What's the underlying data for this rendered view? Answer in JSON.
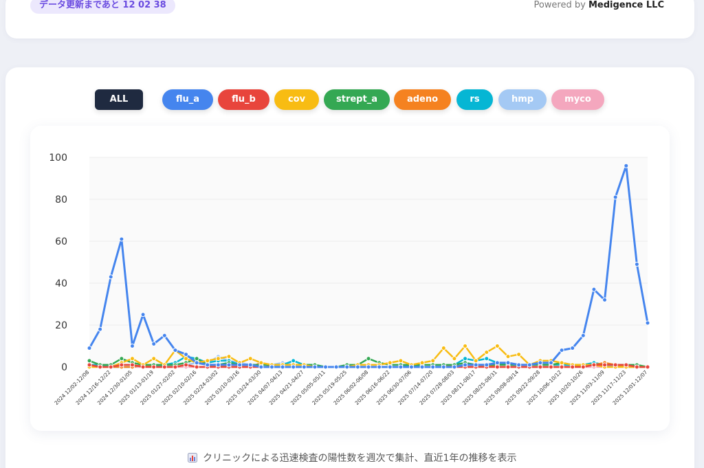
{
  "header": {
    "update_label": "データ更新まであと",
    "countdown": "12 02 38",
    "powered_prefix": "Powered by",
    "powered_company": "Medigence LLC"
  },
  "filters": [
    {
      "label": "ALL",
      "color": "#1f2a40"
    },
    {
      "label": "flu_a",
      "color": "#4585ee"
    },
    {
      "label": "flu_b",
      "color": "#e8453c"
    },
    {
      "label": "cov",
      "color": "#f8bc13"
    },
    {
      "label": "strept_a",
      "color": "#34a853"
    },
    {
      "label": "adeno",
      "color": "#f58220"
    },
    {
      "label": "rs",
      "color": "#06b6d4"
    },
    {
      "label": "hmp",
      "color": "#a4c9f4"
    },
    {
      "label": "myco",
      "color": "#f4a7be"
    }
  ],
  "caption": "クリニックによる迅速検査の陽性数を週次で集計、直近1年の推移を表示",
  "chart_data": {
    "type": "line",
    "title": "",
    "xlabel": "",
    "ylabel": "",
    "ylim": [
      0,
      100
    ],
    "yticks": [
      0,
      20,
      40,
      60,
      80,
      100
    ],
    "grid": true,
    "x": [
      "2024 12/02-12/08",
      "2024 12/09-12/15",
      "2024 12/16-12/22",
      "2024 12/23-12/29",
      "2024 12/30-01/05",
      "2025 01/06-01/12",
      "2025 01/13-01/19",
      "2025 01/20-01/26",
      "2025 01/27-02/02",
      "2025 02/03-02/09",
      "2025 02/10-02/16",
      "2025 02/17-02/23",
      "2025 02/24-03/02",
      "2025 03/03-03/09",
      "2025 03/10-03/16",
      "2025 03/17-03/23",
      "2025 03/24-03/30",
      "2025 03/31-04/06",
      "2025 04/07-04/13",
      "2025 04/14-04/20",
      "2025 04/21-04/27",
      "2025 04/28-05/04",
      "2025 05/05-05/11",
      "2025 05/12-05/18",
      "2025 05/19-05/25",
      "2025 05/26-06/01",
      "2025 06/02-06/08",
      "2025 06/09-06/15",
      "2025 06/16-06/22",
      "2025 06/23-06/29",
      "2025 06/30-07/06",
      "2025 07/07-07/13",
      "2025 07/14-07/20",
      "2025 07/21-07/27",
      "2025 07/28-08/03",
      "2025 08/04-08/10",
      "2025 08/11-08/17",
      "2025 08/18-08/24",
      "2025 08/25-08/31",
      "2025 09/01-09/07",
      "2025 09/08-09/14",
      "2025 09/15-09/21",
      "2025 09/22-09/28",
      "2025 09/29-10/05",
      "2025 10/06-10/12",
      "2025 10/13-10/19",
      "2025 10/20-10/26",
      "2025 10/27-11/02",
      "2025 11/03-11/09",
      "2025 11/10-11/16",
      "2025 11/17-11/23",
      "2025 11/24-11/30",
      "2025 12/01-12/07"
    ],
    "labeled_every": 2,
    "series": [
      {
        "name": "flu_a",
        "color": "#4585ee",
        "values": [
          9,
          18,
          43,
          61,
          10,
          25,
          11,
          15,
          8,
          6,
          2,
          1,
          1,
          1,
          1,
          1,
          0,
          0,
          0,
          0,
          0,
          0,
          0,
          0,
          0,
          0,
          0,
          0,
          0,
          0,
          0,
          0,
          0,
          0,
          0,
          1,
          1,
          1,
          2,
          2,
          1,
          1,
          2,
          2,
          8,
          9,
          15,
          37,
          32,
          81,
          96,
          49,
          21
        ]
      },
      {
        "name": "flu_b",
        "color": "#e8453c",
        "values": [
          1,
          0,
          0,
          1,
          1,
          0,
          0,
          0,
          0,
          1,
          0,
          0,
          0,
          0,
          0,
          0,
          0,
          0,
          0,
          0,
          0,
          0,
          0,
          0,
          0,
          0,
          0,
          0,
          0,
          0,
          0,
          0,
          0,
          0,
          0,
          0,
          0,
          0,
          0,
          0,
          0,
          0,
          0,
          0,
          0,
          0,
          0,
          1,
          1,
          1,
          1,
          0,
          0
        ]
      },
      {
        "name": "cov",
        "color": "#f8bc13",
        "values": [
          0,
          0,
          0,
          2,
          4,
          1,
          4,
          1,
          8,
          4,
          2,
          3,
          4,
          5,
          2,
          4,
          2,
          1,
          1,
          1,
          1,
          0,
          0,
          0,
          0,
          1,
          1,
          1,
          2,
          3,
          1,
          2,
          3,
          9,
          4,
          10,
          3,
          7,
          10,
          5,
          6,
          1,
          3,
          3,
          2,
          1,
          1,
          1,
          0,
          0,
          0,
          0,
          0
        ]
      },
      {
        "name": "strept_a",
        "color": "#34a853",
        "values": [
          3,
          1,
          1,
          4,
          2,
          1,
          1,
          1,
          1,
          2,
          4,
          1,
          1,
          2,
          1,
          1,
          1,
          1,
          1,
          1,
          1,
          1,
          0,
          0,
          1,
          1,
          4,
          2,
          1,
          1,
          1,
          1,
          1,
          1,
          1,
          2,
          1,
          1,
          1,
          1,
          1,
          1,
          1,
          1,
          2,
          1,
          1,
          1,
          1,
          1,
          1,
          1,
          0
        ]
      },
      {
        "name": "adeno",
        "color": "#f58220",
        "values": [
          1,
          0,
          0,
          0,
          0,
          1,
          0,
          0,
          0,
          1,
          0,
          0,
          1,
          0,
          0,
          0,
          2,
          0,
          0,
          0,
          0,
          0,
          0,
          0,
          0,
          0,
          0,
          0,
          0,
          0,
          0,
          0,
          0,
          0,
          1,
          0,
          0,
          1,
          0,
          0,
          0,
          0,
          0,
          0,
          0,
          0,
          1,
          1,
          2,
          1,
          0,
          0,
          0
        ]
      },
      {
        "name": "rs",
        "color": "#06b6d4",
        "values": [
          1,
          1,
          0,
          0,
          0,
          1,
          0,
          1,
          2,
          5,
          4,
          2,
          3,
          3,
          1,
          1,
          1,
          1,
          1,
          3,
          1,
          1,
          0,
          0,
          0,
          0,
          0,
          0,
          0,
          0,
          1,
          0,
          0,
          0,
          1,
          4,
          3,
          4,
          2,
          1,
          1,
          1,
          1,
          1,
          1,
          1,
          1,
          2,
          1,
          1,
          0,
          0,
          0
        ]
      },
      {
        "name": "hmp",
        "color": "#a4c9f4",
        "values": [
          1,
          1,
          1,
          0,
          0,
          1,
          1,
          1,
          0,
          1,
          2,
          2,
          5,
          3,
          2,
          1,
          1,
          1,
          2,
          1,
          1,
          1,
          0,
          0,
          0,
          0,
          0,
          0,
          0,
          0,
          0,
          0,
          0,
          1,
          0,
          1,
          1,
          1,
          1,
          1,
          0,
          0,
          0,
          0,
          0,
          1,
          0,
          1,
          1,
          0,
          0,
          0,
          0
        ]
      },
      {
        "name": "myco",
        "color": "#f4a7be",
        "values": [
          0,
          0,
          0,
          0,
          0,
          0,
          0,
          0,
          0,
          0,
          0,
          0,
          0,
          0,
          0,
          0,
          0,
          0,
          0,
          0,
          0,
          0,
          0,
          0,
          0,
          0,
          0,
          0,
          0,
          0,
          0,
          0,
          0,
          0,
          0,
          0,
          0,
          0,
          0,
          0,
          0,
          0,
          0,
          0,
          0,
          0,
          0,
          0,
          0,
          0,
          0,
          0,
          0
        ]
      }
    ]
  }
}
